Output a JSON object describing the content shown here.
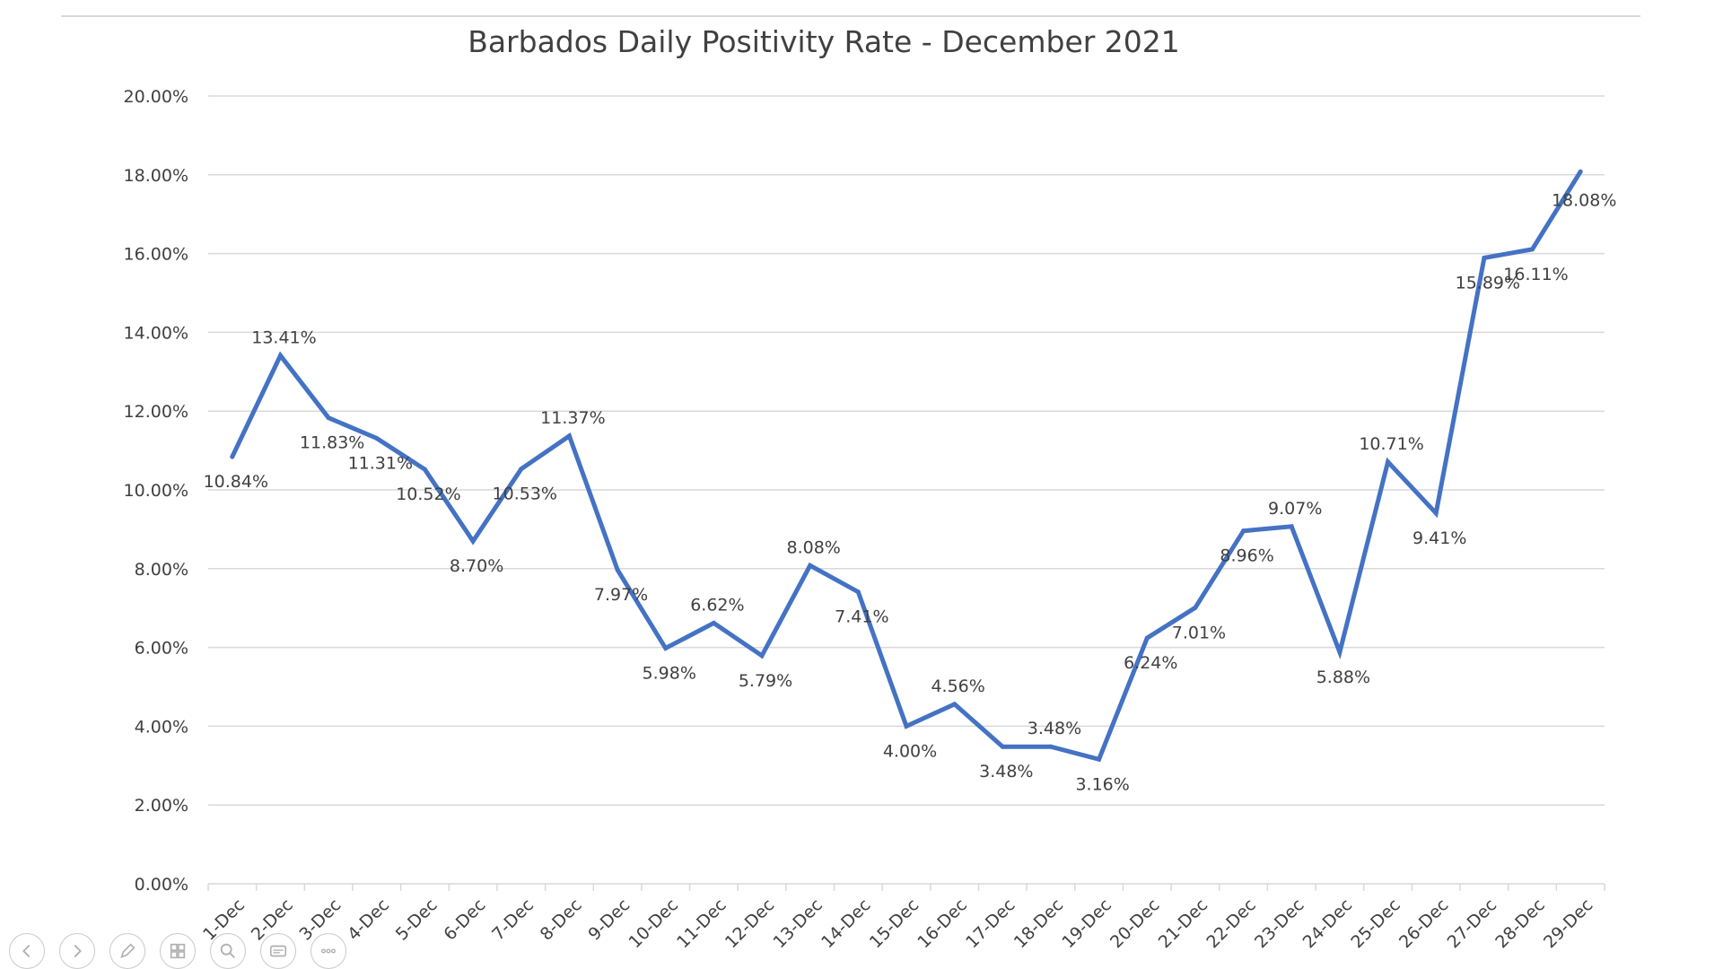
{
  "chart_data": {
    "type": "line",
    "title": "Barbados Daily Positivity Rate - December 2021",
    "xlabel": "",
    "ylabel": "",
    "ylim": [
      0,
      20
    ],
    "y_ticks": [
      "0.00%",
      "2.00%",
      "4.00%",
      "6.00%",
      "8.00%",
      "10.00%",
      "12.00%",
      "14.00%",
      "16.00%",
      "18.00%",
      "20.00%"
    ],
    "categories": [
      "1-Dec",
      "2-Dec",
      "3-Dec",
      "4-Dec",
      "5-Dec",
      "6-Dec",
      "7-Dec",
      "8-Dec",
      "9-Dec",
      "10-Dec",
      "11-Dec",
      "12-Dec",
      "13-Dec",
      "14-Dec",
      "15-Dec",
      "16-Dec",
      "17-Dec",
      "18-Dec",
      "19-Dec",
      "20-Dec",
      "21-Dec",
      "22-Dec",
      "23-Dec",
      "24-Dec",
      "25-Dec",
      "26-Dec",
      "27-Dec",
      "28-Dec",
      "29-Dec"
    ],
    "series": [
      {
        "name": "Positivity Rate",
        "color": "#4472C4",
        "values": [
          10.84,
          13.41,
          11.83,
          11.31,
          10.52,
          8.7,
          10.53,
          11.37,
          7.97,
          5.98,
          6.62,
          5.79,
          8.08,
          7.41,
          4.0,
          4.56,
          3.48,
          3.48,
          3.16,
          6.24,
          7.01,
          8.96,
          9.07,
          5.88,
          10.71,
          9.41,
          15.89,
          16.11,
          18.08
        ],
        "labels": [
          "10.84%",
          "13.41%",
          "11.83%",
          "11.31%",
          "10.52%",
          "8.70%",
          "10.53%",
          "11.37%",
          "7.97%",
          "5.98%",
          "6.62%",
          "5.79%",
          "8.08%",
          "7.41%",
          "4.00%",
          "4.56%",
          "3.48%",
          "3.48%",
          "3.16%",
          "6.24%",
          "7.01%",
          "8.96%",
          "9.07%",
          "5.88%",
          "10.71%",
          "9.41%",
          "15.89%",
          "16.11%",
          "18.08%"
        ]
      }
    ],
    "grid": true,
    "legend": "none"
  },
  "colors": {
    "line": "#4472C4",
    "grid": "#d9d9d9",
    "text": "#404040"
  },
  "toolbar": {
    "buttons": [
      {
        "name": "previous-slide-button",
        "icon": "arrow-left-icon"
      },
      {
        "name": "next-slide-button",
        "icon": "arrow-right-icon"
      },
      {
        "name": "pen-tool-button",
        "icon": "pen-icon"
      },
      {
        "name": "slides-grid-button",
        "icon": "grid-icon"
      },
      {
        "name": "zoom-button",
        "icon": "magnifier-icon"
      },
      {
        "name": "subtitles-button",
        "icon": "subtitles-icon"
      },
      {
        "name": "more-options-button",
        "icon": "ellipsis-icon"
      }
    ]
  }
}
